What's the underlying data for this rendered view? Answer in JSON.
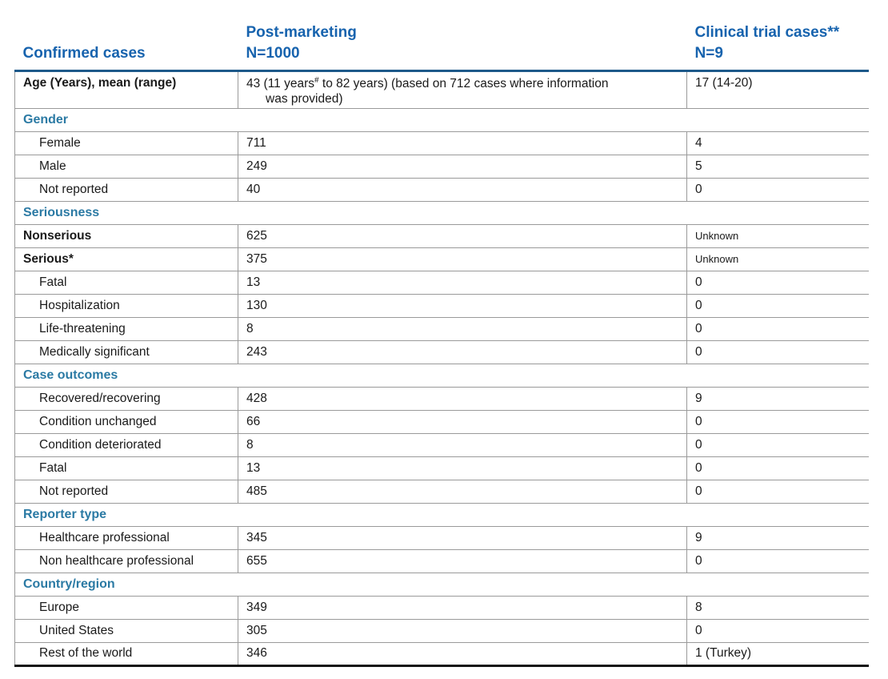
{
  "colors": {
    "header_blue": "#1763ae",
    "section_teal": "#2b7aa4",
    "rule_blue": "#1d5989",
    "row_line_gray": "#9a9a9a",
    "bottom_rule_black": "#141414"
  },
  "table": {
    "header": {
      "col1": "Confirmed cases",
      "col2_line1": "Post-marketing",
      "col2_line2": "N=1000",
      "col3_line1": "Clinical trial cases**",
      "col3_line2": "N=9"
    },
    "age_row": {
      "label": "Age (Years), mean (range)",
      "pm_text_1": "43 (11 years",
      "pm_sup": "#",
      "pm_text_2": " to 82 years) (based on 712 cases where information",
      "pm_text_3": "was provided)",
      "ct": "17 (14-20)"
    },
    "sections": [
      {
        "title": "Gender",
        "rows": [
          {
            "label": "Female",
            "pm": "711",
            "ct": "4"
          },
          {
            "label": "Male",
            "pm": "249",
            "ct": "5"
          },
          {
            "label": "Not reported",
            "pm": "40",
            "ct": "0"
          }
        ]
      },
      {
        "title": "Seriousness",
        "rows": [
          {
            "label": "Nonserious",
            "pm": "625",
            "ct": "Unknown"
          },
          {
            "label": "Serious*",
            "pm": "375",
            "ct": "Unknown"
          },
          {
            "label": "Fatal",
            "pm": "13",
            "ct": "0"
          },
          {
            "label": "Hospitalization",
            "pm": "130",
            "ct": "0"
          },
          {
            "label": "Life-threatening",
            "pm": "8",
            "ct": "0"
          },
          {
            "label": "Medically significant",
            "pm": "243",
            "ct": "0"
          }
        ]
      },
      {
        "title": "Case outcomes",
        "rows": [
          {
            "label": "Recovered/recovering",
            "pm": "428",
            "ct": "9"
          },
          {
            "label": "Condition unchanged",
            "pm": "66",
            "ct": "0"
          },
          {
            "label": "Condition deteriorated",
            "pm": "8",
            "ct": "0"
          },
          {
            "label": "Fatal",
            "pm": "13",
            "ct": "0"
          },
          {
            "label": "Not reported",
            "pm": "485",
            "ct": "0"
          }
        ]
      },
      {
        "title": "Reporter type",
        "rows": [
          {
            "label": "Healthcare professional",
            "pm": "345",
            "ct": "9"
          },
          {
            "label": "Non healthcare professional",
            "pm": "655",
            "ct": "0"
          }
        ]
      },
      {
        "title": "Country/region",
        "rows": [
          {
            "label": "Europe",
            "pm": "349",
            "ct": "8"
          },
          {
            "label": "United States",
            "pm": "305",
            "ct": "0"
          },
          {
            "label": "Rest of the world",
            "pm": "346",
            "ct": "1 (Turkey)"
          }
        ]
      }
    ]
  }
}
